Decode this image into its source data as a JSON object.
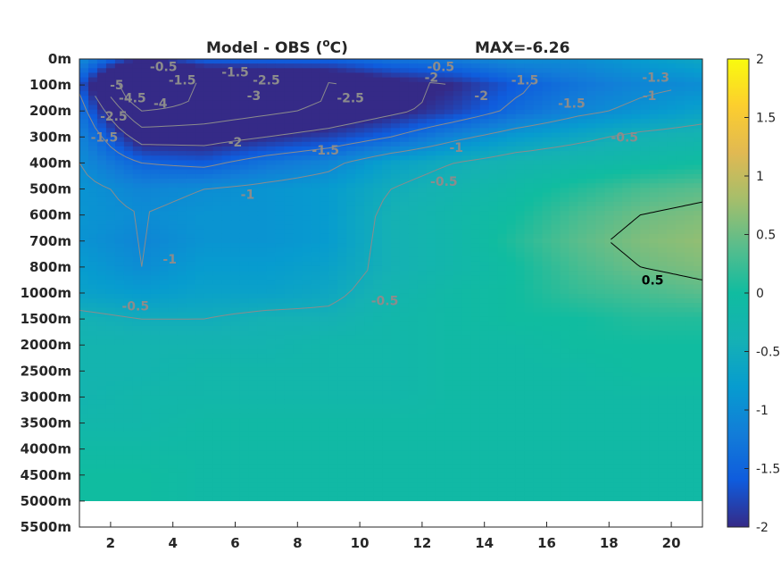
{
  "chart_data": {
    "type": "heatmap",
    "title": "Model - OBS (",
    "title_sup": "o",
    "title_unit": "C)",
    "max_label": "MAX=-6.26",
    "colormap": "parula",
    "xlim": [
      1,
      21
    ],
    "x_ticks": [
      2,
      4,
      6,
      8,
      10,
      12,
      14,
      16,
      18,
      20
    ],
    "y_tick_labels": [
      "0m",
      "100m",
      "200m",
      "300m",
      "400m",
      "500m",
      "600m",
      "700m",
      "800m",
      "1000m",
      "1500m",
      "2000m",
      "2500m",
      "3000m",
      "3500m",
      "4000m",
      "4500m",
      "5000m",
      "5500m"
    ],
    "data_rows": 17,
    "clim": [
      -2,
      2
    ],
    "colorbar_ticks": [
      "2",
      "1.5",
      "1",
      "0.5",
      "0",
      "-0.5",
      "-1",
      "-1.5",
      "-2"
    ],
    "colorbar_tick_values": [
      2,
      1.5,
      1,
      0.5,
      0,
      -0.5,
      -1,
      -1.5,
      -2
    ],
    "approx_field": {
      "description_units": "temperature difference in degrees C sampled on depth-level rows x column index",
      "x": [
        1,
        3,
        5,
        7,
        9,
        11,
        13,
        15,
        17,
        19,
        21
      ],
      "levels": [
        "0m",
        "100m",
        "200m",
        "300m",
        "400m",
        "500m",
        "600m",
        "700m",
        "800m",
        "1000m",
        "1500m",
        "2000m",
        "2500m",
        "3000m",
        "3500m",
        "4000m",
        "4500m"
      ],
      "values": [
        [
          -1.0,
          -2.0,
          -1.5,
          -1.5,
          -1.5,
          -1.3,
          -1.2,
          -1.0,
          -1.0,
          -0.8,
          -0.6
        ],
        [
          -1.6,
          -4.0,
          -3.0,
          -2.8,
          -2.6,
          -2.2,
          -2.0,
          -1.6,
          -1.3,
          -1.1,
          -1.0
        ],
        [
          -1.3,
          -3.0,
          -2.8,
          -2.6,
          -2.4,
          -2.1,
          -1.8,
          -1.4,
          -1.1,
          -0.9,
          -0.7
        ],
        [
          -1.1,
          -2.2,
          -2.2,
          -2.0,
          -1.8,
          -1.5,
          -1.1,
          -0.8,
          -0.6,
          -0.4,
          -0.3
        ],
        [
          -1.0,
          -1.5,
          -1.6,
          -1.3,
          -1.1,
          -0.7,
          -0.5,
          -0.3,
          -0.2,
          -0.1,
          0.0
        ],
        [
          -0.9,
          -1.1,
          -1.0,
          -0.9,
          -0.8,
          -0.5,
          -0.3,
          -0.1,
          0.1,
          0.3,
          0.4
        ],
        [
          -0.9,
          -1.0,
          -0.9,
          -0.9,
          -0.8,
          -0.4,
          -0.2,
          0.0,
          0.3,
          0.5,
          0.6
        ],
        [
          -0.9,
          -1.1,
          -0.9,
          -0.9,
          -0.8,
          -0.4,
          -0.2,
          0.1,
          0.4,
          0.6,
          0.7
        ],
        [
          -0.8,
          -1.0,
          -0.8,
          -0.8,
          -0.7,
          -0.4,
          -0.2,
          0.0,
          0.3,
          0.5,
          0.6
        ],
        [
          -0.7,
          -0.8,
          -0.7,
          -0.7,
          -0.6,
          -0.3,
          -0.1,
          0.0,
          0.2,
          0.3,
          0.4
        ],
        [
          -0.4,
          -0.5,
          -0.5,
          -0.4,
          -0.4,
          -0.2,
          -0.1,
          0.0,
          0.0,
          0.1,
          0.1
        ],
        [
          -0.3,
          -0.3,
          -0.3,
          -0.3,
          -0.2,
          -0.2,
          -0.1,
          -0.1,
          0.0,
          0.0,
          0.0
        ],
        [
          -0.3,
          -0.3,
          -0.2,
          -0.2,
          -0.2,
          -0.2,
          -0.1,
          -0.1,
          -0.1,
          0.0,
          0.0
        ],
        [
          -0.3,
          -0.2,
          -0.2,
          -0.2,
          -0.2,
          -0.2,
          -0.1,
          -0.1,
          -0.1,
          -0.1,
          -0.1
        ],
        [
          -0.2,
          -0.2,
          -0.1,
          -0.1,
          -0.1,
          -0.1,
          -0.1,
          -0.1,
          -0.1,
          -0.1,
          -0.1
        ],
        [
          -0.1,
          -0.1,
          -0.1,
          -0.1,
          -0.1,
          -0.1,
          -0.1,
          -0.1,
          -0.1,
          -0.1,
          -0.1
        ],
        [
          0.0,
          0.0,
          -0.1,
          -0.1,
          -0.1,
          -0.1,
          -0.1,
          -0.1,
          -0.1,
          -0.1,
          -0.1
        ]
      ]
    },
    "contour_labels": [
      {
        "text": "-5",
        "x": 2.2,
        "level": 1.0
      },
      {
        "text": "-4.5",
        "x": 2.7,
        "level": 1.5
      },
      {
        "text": "-4",
        "x": 3.6,
        "level": 1.7
      },
      {
        "text": "-3",
        "x": 6.6,
        "level": 1.4
      },
      {
        "text": "-2.5",
        "x": 2.1,
        "level": 2.2
      },
      {
        "text": "-2.5",
        "x": 7.0,
        "level": 0.8
      },
      {
        "text": "-2.5",
        "x": 9.7,
        "level": 1.5
      },
      {
        "text": "-2",
        "x": 12.3,
        "level": 0.7
      },
      {
        "text": "-2",
        "x": 13.9,
        "level": 1.4
      },
      {
        "text": "-2",
        "x": 6.0,
        "level": 3.2
      },
      {
        "text": "-1.5",
        "x": 4.3,
        "level": 0.8
      },
      {
        "text": "-1.5",
        "x": 6.0,
        "level": 0.5
      },
      {
        "text": "-1.5",
        "x": 1.8,
        "level": 3.0
      },
      {
        "text": "-1.5",
        "x": 15.3,
        "level": 0.8
      },
      {
        "text": "-1.5",
        "x": 16.8,
        "level": 1.7
      },
      {
        "text": "-1.5",
        "x": 8.9,
        "level": 3.5
      },
      {
        "text": "-1",
        "x": 13.1,
        "level": 3.4
      },
      {
        "text": "-1",
        "x": 19.3,
        "level": 1.4
      },
      {
        "text": "-1",
        "x": 6.4,
        "level": 5.2
      },
      {
        "text": "-1",
        "x": 3.9,
        "level": 7.7
      },
      {
        "text": "-1.3",
        "x": 19.5,
        "level": 0.7
      },
      {
        "text": "-0.5",
        "x": 3.7,
        "level": 0.3
      },
      {
        "text": "-0.5",
        "x": 12.6,
        "level": 0.3
      },
      {
        "text": "-0.5",
        "x": 18.5,
        "level": 3.0
      },
      {
        "text": "-0.5",
        "x": 12.7,
        "level": 4.7
      },
      {
        "text": "-0.5",
        "x": 2.8,
        "level": 9.5
      },
      {
        "text": "-0.5",
        "x": 10.8,
        "level": 9.3
      },
      {
        "text": "0.5",
        "x": 19.4,
        "level": 8.5
      }
    ]
  }
}
